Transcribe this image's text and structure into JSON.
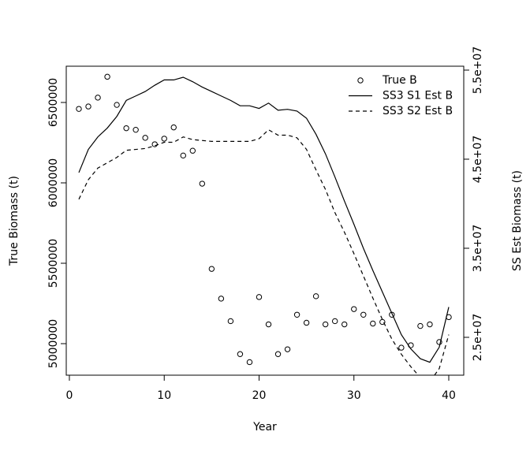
{
  "chart_data": {
    "type": "line",
    "xlabel": "Year",
    "ylabel": "True Biomass (t)",
    "y2label": "SS Est Biomass (t)",
    "x": [
      1,
      2,
      3,
      4,
      5,
      6,
      7,
      8,
      9,
      10,
      11,
      12,
      13,
      14,
      15,
      16,
      17,
      18,
      19,
      20,
      21,
      22,
      23,
      24,
      25,
      26,
      27,
      28,
      29,
      30,
      31,
      32,
      33,
      34,
      35,
      36,
      37,
      38,
      39,
      40
    ],
    "xlim": [
      -0.33,
      41.58
    ],
    "xticks": [
      0,
      10,
      20,
      30,
      40
    ],
    "ylim": [
      4803922,
      6725490
    ],
    "yticks": [
      5000000,
      5500000,
      6000000,
      6500000
    ],
    "y2lim": [
      20750000,
      55440000
    ],
    "y2ticks": [
      {
        "value": 25000000,
        "label": "2.5e+07"
      },
      {
        "value": 35000000,
        "label": "3.5e+07"
      },
      {
        "value": 45000000,
        "label": "4.5e+07"
      },
      {
        "value": 55000000,
        "label": "5.5e+07"
      }
    ],
    "legend": "topright",
    "series": [
      {
        "name": "True B",
        "color": "#000000",
        "style": "points",
        "values": [
          6460000,
          6475000,
          6530000,
          6660000,
          6485000,
          6340000,
          6330000,
          6280000,
          6240000,
          6275000,
          6345000,
          6170000,
          6200000,
          5995000,
          5465000,
          5280000,
          5140000,
          4935000,
          4885000,
          5290000,
          5120000,
          4935000,
          4965000,
          5180000,
          5130000,
          5295000,
          5120000,
          5140000,
          5120000,
          5215000,
          5180000,
          5125000,
          5135000,
          5180000,
          4975000,
          4990000,
          5110000,
          5120000,
          5010000,
          5165000
        ]
      },
      {
        "name": "SS3 S1 Est B",
        "color": "#000000",
        "style": "solid",
        "axis": "y2",
        "values": [
          43500000,
          46100000,
          47500000,
          48500000,
          49800000,
          51600000,
          52100000,
          52600000,
          53300000,
          53900000,
          53900000,
          54200000,
          53700000,
          53100000,
          52600000,
          52100000,
          51600000,
          51000000,
          51000000,
          50700000,
          51300000,
          50500000,
          50600000,
          50400000,
          49600000,
          47800000,
          45600000,
          43000000,
          40300000,
          37700000,
          35000000,
          32500000,
          30100000,
          27700000,
          25300000,
          23700000,
          22600000,
          22200000,
          23900000,
          28400000
        ]
      },
      {
        "name": "SS3 S2 Est B",
        "color": "#000000",
        "style": "dashed",
        "axis": "y2",
        "values": [
          40500000,
          42700000,
          44000000,
          44600000,
          45200000,
          46000000,
          46100000,
          46200000,
          46500000,
          46900000,
          46900000,
          47500000,
          47200000,
          47100000,
          47000000,
          47000000,
          47000000,
          47000000,
          47000000,
          47300000,
          48300000,
          47700000,
          47700000,
          47400000,
          46100000,
          43800000,
          41600000,
          39000000,
          36800000,
          34400000,
          31900000,
          29400000,
          27000000,
          24800000,
          23100000,
          21700000,
          20500000,
          20000000,
          21500000,
          25300000
        ]
      }
    ]
  }
}
